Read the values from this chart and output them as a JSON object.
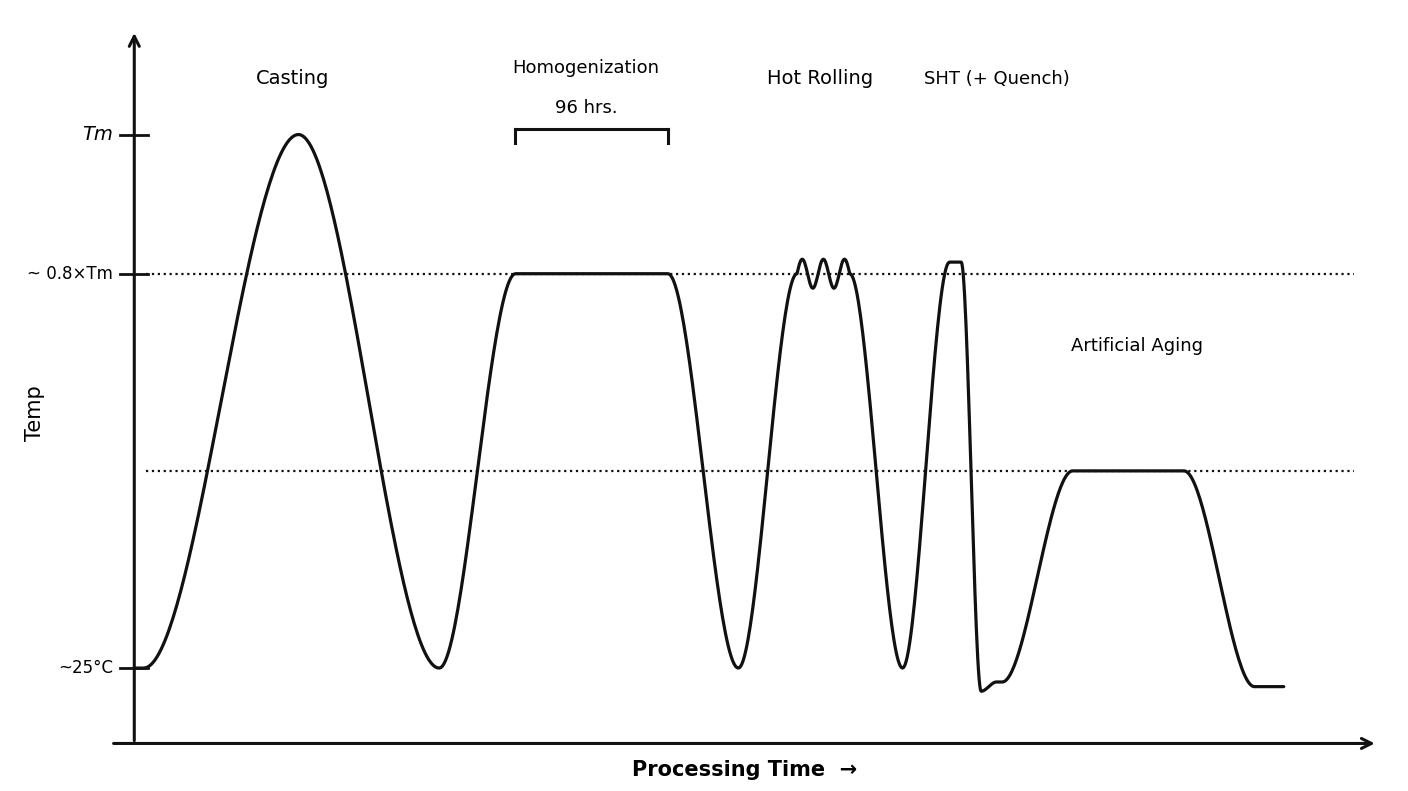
{
  "background_color": "#ffffff",
  "line_color": "#111111",
  "line_width": 2.3,
  "T_room": 0.08,
  "T_aging": 0.42,
  "T_homo": 0.76,
  "T_max": 1.0,
  "tm_label": "Tm",
  "t08_label": "~ 0.8×Tm",
  "t25_label": "~25°C",
  "ylabel": "Temp",
  "xlabel": "Processing Time  →"
}
